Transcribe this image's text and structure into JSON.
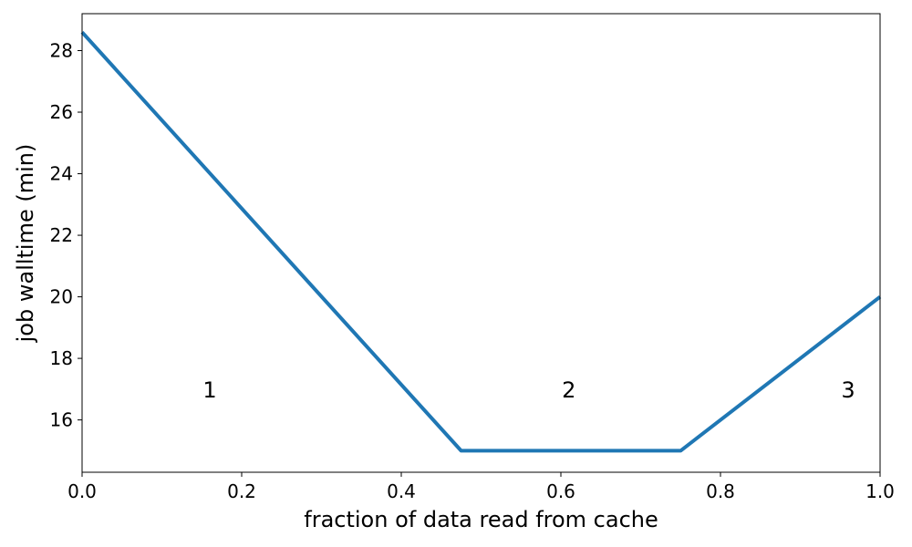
{
  "chart_data": {
    "type": "line",
    "title": "",
    "xlabel": "fraction of data read from cache",
    "ylabel": "job walltime (min)",
    "xlim": [
      0.0,
      1.0
    ],
    "ylim": [
      14.3,
      29.2
    ],
    "x_ticks": [
      {
        "value": 0.0,
        "label": "0.0"
      },
      {
        "value": 0.2,
        "label": "0.2"
      },
      {
        "value": 0.4,
        "label": "0.4"
      },
      {
        "value": 0.6,
        "label": "0.6"
      },
      {
        "value": 0.8,
        "label": "0.8"
      },
      {
        "value": 1.0,
        "label": "1.0"
      }
    ],
    "y_ticks": [
      {
        "value": 16,
        "label": "16"
      },
      {
        "value": 18,
        "label": "18"
      },
      {
        "value": 20,
        "label": "20"
      },
      {
        "value": 22,
        "label": "22"
      },
      {
        "value": 24,
        "label": "24"
      },
      {
        "value": 26,
        "label": "26"
      },
      {
        "value": 28,
        "label": "28"
      }
    ],
    "grid": false,
    "legend": "none",
    "series": [
      {
        "color": "#1f77b4",
        "x": [
          0.0,
          0.475,
          0.75,
          1.0
        ],
        "y": [
          28.6,
          15.0,
          15.0,
          20.0
        ]
      }
    ],
    "annotations": [
      {
        "text": "1",
        "x": 0.16,
        "y": 17.0
      },
      {
        "text": "2",
        "x": 0.61,
        "y": 17.0
      },
      {
        "text": "3",
        "x": 0.96,
        "y": 17.0
      }
    ]
  }
}
